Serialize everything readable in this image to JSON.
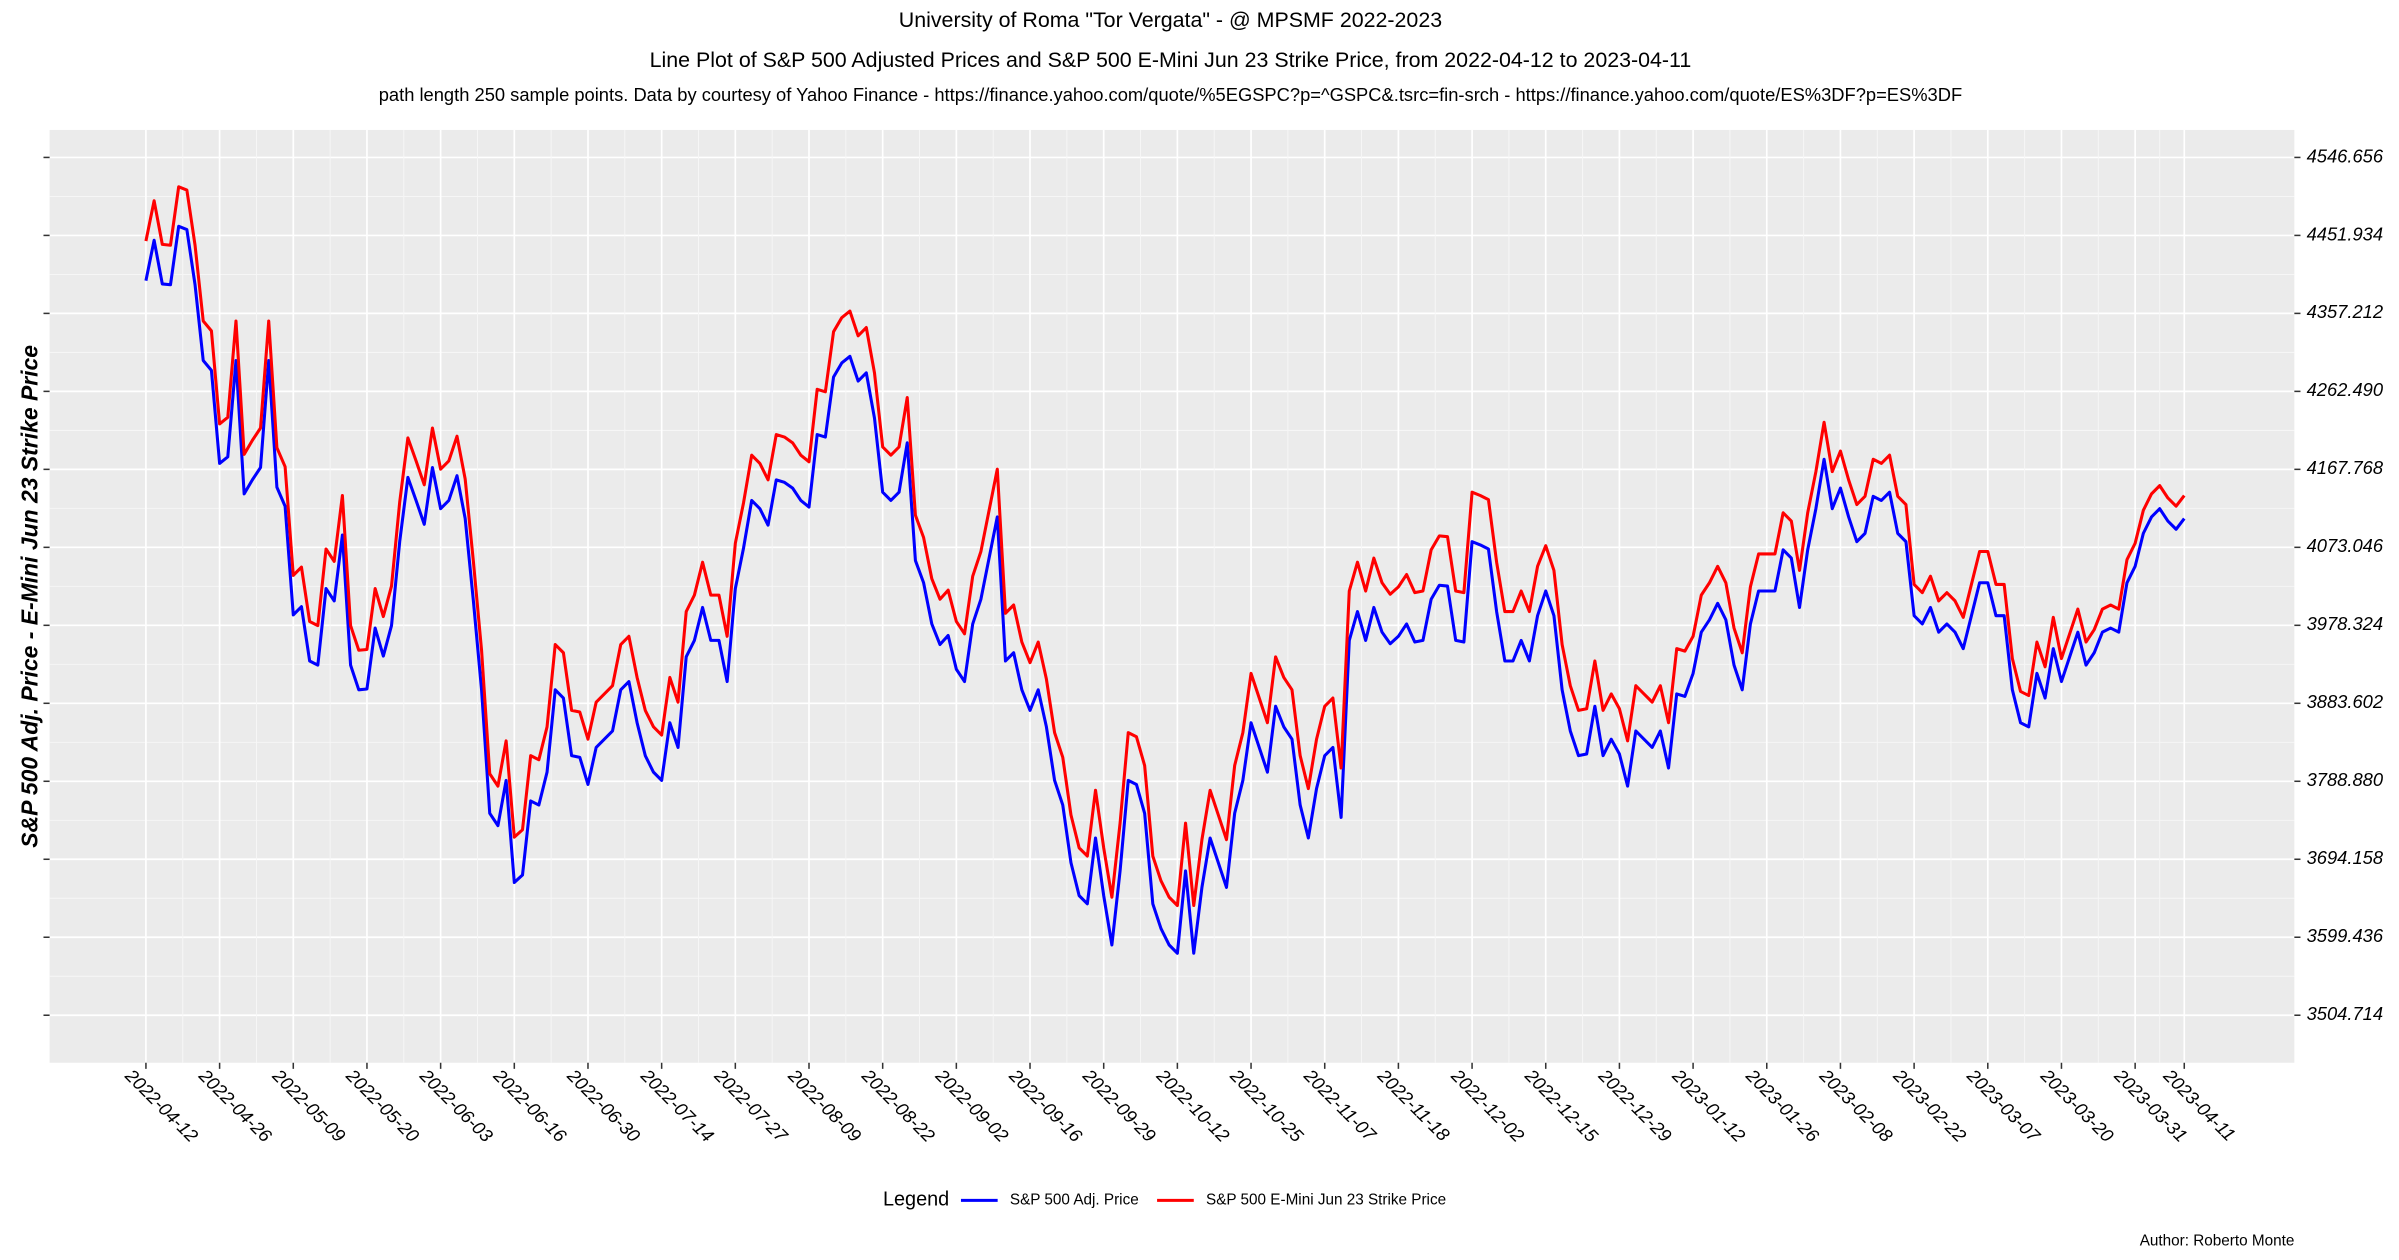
{
  "chart_data": {
    "type": "line",
    "title": "University of Roma \"Tor Vergata\" - @ MPSMF 2022-2023",
    "subtitle": [
      "Line Plot of S&P 500 Adjusted Prices and S&P 500 E-Mini Jun 23 Strike Price, from 2022-04-12 to 2023-04-11",
      "path length 250 sample points. Data by courtesy of Yahoo Finance -  https://finance.yahoo.com/quote/%5EGSPC?p=^GSPC&.tsrc=fin-srch  -  https://finance.yahoo.com/quote/ES%3DF?p=ES%3DF"
    ],
    "ylabel": "S&P 500 Adj. Price - E-Mini Jun 23 Strike Price",
    "legend_title": "Legend",
    "legend": "bottom",
    "caption": "Author: Roberto Monte",
    "grid": true,
    "yaxis_side": "right",
    "ylim": [
      3447,
      4580
    ],
    "yticks": [
      4546.656,
      4451.934,
      4357.212,
      {
        "value": 4262.49,
        "label": "4262.490"
      },
      4167.768,
      4073.046,
      3978.324,
      3883.602,
      {
        "value": 3788.88,
        "label": "3788.880"
      },
      3694.158,
      3599.436,
      3504.714
    ],
    "categories": [
      "2022-04-12",
      null,
      null,
      null,
      null,
      null,
      null,
      null,
      null,
      "2022-04-26",
      null,
      null,
      null,
      null,
      null,
      null,
      null,
      null,
      "2022-05-09",
      null,
      null,
      null,
      null,
      null,
      null,
      null,
      null,
      "2022-05-20",
      null,
      null,
      null,
      null,
      null,
      null,
      null,
      null,
      "2022-06-03",
      null,
      null,
      null,
      null,
      null,
      null,
      null,
      null,
      "2022-06-16",
      null,
      null,
      null,
      null,
      null,
      null,
      null,
      null,
      "2022-06-30",
      null,
      null,
      null,
      null,
      null,
      null,
      null,
      null,
      "2022-07-14",
      null,
      null,
      null,
      null,
      null,
      null,
      null,
      null,
      "2022-07-27",
      null,
      null,
      null,
      null,
      null,
      null,
      null,
      null,
      "2022-08-09",
      null,
      null,
      null,
      null,
      null,
      null,
      null,
      null,
      "2022-08-22",
      null,
      null,
      null,
      null,
      null,
      null,
      null,
      null,
      "2022-09-02",
      null,
      null,
      null,
      null,
      null,
      null,
      null,
      null,
      "2022-09-16",
      null,
      null,
      null,
      null,
      null,
      null,
      null,
      null,
      "2022-09-29",
      null,
      null,
      null,
      null,
      null,
      null,
      null,
      null,
      "2022-10-12",
      null,
      null,
      null,
      null,
      null,
      null,
      null,
      null,
      "2022-10-25",
      null,
      null,
      null,
      null,
      null,
      null,
      null,
      null,
      "2022-11-07",
      null,
      null,
      null,
      null,
      null,
      null,
      null,
      null,
      "2022-11-18",
      null,
      null,
      null,
      null,
      null,
      null,
      null,
      null,
      "2022-12-02",
      null,
      null,
      null,
      null,
      null,
      null,
      null,
      null,
      "2022-12-15",
      null,
      null,
      null,
      null,
      null,
      null,
      null,
      null,
      "2022-12-29",
      null,
      null,
      null,
      null,
      null,
      null,
      null,
      null,
      "2023-01-12",
      null,
      null,
      null,
      null,
      null,
      null,
      null,
      null,
      "2023-01-26",
      null,
      null,
      null,
      null,
      null,
      null,
      null,
      null,
      "2023-02-08",
      null,
      null,
      null,
      null,
      null,
      null,
      null,
      null,
      "2023-02-22",
      null,
      null,
      null,
      null,
      null,
      null,
      null,
      null,
      "2023-03-07",
      null,
      null,
      null,
      null,
      null,
      null,
      null,
      null,
      "2023-03-20",
      null,
      null,
      null,
      null,
      null,
      null,
      null,
      null,
      "2023-03-31",
      null,
      null,
      null,
      null,
      null,
      "2023-04-11"
    ],
    "series": [
      {
        "name": "S&P 500 Adj. Price",
        "color": "#0000ff",
        "values": [
          4397,
          4446,
          4393,
          4392,
          4463,
          4459,
          4392,
          4300,
          4288,
          4175,
          4183,
          4300,
          4138,
          4155,
          4170,
          4300,
          4146,
          4123,
          3991,
          4001,
          3935,
          3930,
          4023,
          4008,
          4088,
          3930,
          3900,
          3901,
          3975,
          3941,
          3978,
          4080,
          4158,
          4130,
          4101,
          4170,
          4120,
          4130,
          4160,
          4108,
          4008,
          3900,
          3750,
          3735,
          3790,
          3666,
          3675,
          3765,
          3760,
          3800,
          3900,
          3890,
          3820,
          3818,
          3785,
          3830,
          3840,
          3850,
          3900,
          3910,
          3860,
          3820,
          3800,
          3790,
          3860,
          3830,
          3940,
          3960,
          4000,
          3960,
          3960,
          3910,
          4023,
          4072,
          4130,
          4120,
          4100,
          4155,
          4152,
          4145,
          4130,
          4122,
          4210,
          4207,
          4280,
          4297,
          4305,
          4275,
          4285,
          4230,
          4140,
          4130,
          4140,
          4200,
          4057,
          4030,
          3980,
          3955,
          3966,
          3925,
          3910,
          3980,
          4010,
          4060,
          4110,
          3935,
          3945,
          3900,
          3875,
          3900,
          3855,
          3790,
          3760,
          3690,
          3650,
          3640,
          3720,
          3650,
          3590,
          3680,
          3790,
          3785,
          3750,
          3640,
          3610,
          3590,
          3580,
          3680,
          3580,
          3660,
          3720,
          3690,
          3660,
          3750,
          3790,
          3860,
          3830,
          3800,
          3880,
          3855,
          3840,
          3760,
          3720,
          3780,
          3820,
          3830,
          3745,
          3960,
          3995,
          3960,
          4000,
          3970,
          3956,
          3965,
          3980,
          3958,
          3960,
          4010,
          4027,
          4026,
          3960,
          3958,
          4080,
          4076,
          4071,
          3995,
          3935,
          3935,
          3960,
          3935,
          3990,
          4020,
          3990,
          3900,
          3850,
          3820,
          3822,
          3880,
          3820,
          3840,
          3822,
          3783,
          3850,
          3840,
          3830,
          3850,
          3805,
          3895,
          3892,
          3920,
          3970,
          3985,
          4005,
          3985,
          3930,
          3900,
          3980,
          4020,
          4020,
          4020,
          4070,
          4060,
          4000,
          4070,
          4120,
          4180,
          4120,
          4145,
          4110,
          4080,
          4090,
          4135,
          4130,
          4140,
          4090,
          4080,
          3990,
          3980,
          4000,
          3970,
          3980,
          3970,
          3950,
          3990,
          4030,
          4030,
          3990,
          3990,
          3900,
          3860,
          3855,
          3920,
          3890,
          3950,
          3910,
          3940,
          3970,
          3930,
          3945,
          3970,
          3975,
          3970,
          4030,
          4050,
          4090,
          4110,
          4120,
          4105,
          4095,
          4108
        ]
      },
      {
        "name": "S&P 500 E-Mini Jun 23 Strike Price",
        "color": "#ff0000",
        "values": [
          4445,
          4494,
          4441,
          4440,
          4511,
          4507,
          4440,
          4348,
          4336,
          4223,
          4231,
          4348,
          4186,
          4203,
          4218,
          4348,
          4194,
          4171,
          4039,
          4049,
          3983,
          3978,
          4071,
          4056,
          4136,
          3978,
          3948,
          3949,
          4023,
          3989,
          4026,
          4128,
          4206,
          4178,
          4149,
          4218,
          4168,
          4178,
          4208,
          4156,
          4056,
          3948,
          3798,
          3783,
          3838,
          3721,
          3730,
          3820,
          3815,
          3855,
          3955,
          3945,
          3875,
          3873,
          3840,
          3885,
          3895,
          3905,
          3955,
          3965,
          3915,
          3875,
          3855,
          3845,
          3915,
          3885,
          3995,
          4015,
          4055,
          4015,
          4015,
          3965,
          4078,
          4127,
          4185,
          4175,
          4155,
          4210,
          4207,
          4200,
          4185,
          4177,
          4265,
          4262,
          4335,
          4352,
          4360,
          4330,
          4340,
          4285,
          4195,
          4185,
          4195,
          4255,
          4112,
          4085,
          4035,
          4010,
          4021,
          3983,
          3968,
          4038,
          4068,
          4118,
          4168,
          3993,
          4003,
          3958,
          3933,
          3958,
          3913,
          3848,
          3818,
          3748,
          3708,
          3698,
          3778,
          3708,
          3648,
          3738,
          3848,
          3843,
          3808,
          3698,
          3668,
          3648,
          3638,
          3738,
          3638,
          3718,
          3778,
          3748,
          3718,
          3808,
          3848,
          3920,
          3890,
          3860,
          3940,
          3915,
          3900,
          3820,
          3780,
          3840,
          3880,
          3890,
          3805,
          4020,
          4055,
          4020,
          4060,
          4030,
          4016,
          4025,
          4040,
          4018,
          4020,
          4070,
          4087,
          4086,
          4020,
          4018,
          4140,
          4136,
          4131,
          4055,
          3995,
          3995,
          4020,
          3995,
          4050,
          4075,
          4045,
          3955,
          3905,
          3875,
          3877,
          3935,
          3875,
          3895,
          3877,
          3838,
          3905,
          3895,
          3885,
          3905,
          3860,
          3950,
          3947,
          3965,
          4015,
          4030,
          4050,
          4030,
          3975,
          3945,
          4025,
          4065,
          4065,
          4065,
          4115,
          4105,
          4045,
          4115,
          4165,
          4225,
          4165,
          4190,
          4155,
          4125,
          4135,
          4180,
          4175,
          4185,
          4135,
          4125,
          4028,
          4018,
          4038,
          4008,
          4018,
          4008,
          3988,
          4028,
          4068,
          4068,
          4028,
          4028,
          3938,
          3898,
          3893,
          3958,
          3928,
          3988,
          3938,
          3968,
          3998,
          3958,
          3973,
          3998,
          4003,
          3998,
          4058,
          4078,
          4118,
          4138,
          4148,
          4133,
          4123,
          4136
        ]
      }
    ]
  }
}
